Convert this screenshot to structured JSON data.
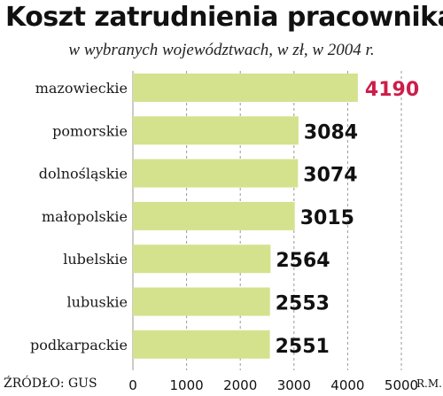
{
  "title": "Koszt zatrudnienia pracownika",
  "subtitle": "w wybranych województwach, w zł, w 2004 r.",
  "source": "ŹRÓDŁO: GUS",
  "credit": "R.M.",
  "colors": {
    "bar": "#d4e28e",
    "value_text": "#111111",
    "highlight_value_text": "#cc1e4a",
    "grid": "#999999"
  },
  "chart_data": {
    "type": "bar",
    "orientation": "horizontal",
    "categories": [
      "mazowieckie",
      "pomorskie",
      "dolnośląskie",
      "małopolskie",
      "lubelskie",
      "lubuskie",
      "podkarpackie"
    ],
    "values": [
      4190,
      3084,
      3074,
      3015,
      2564,
      2553,
      2551
    ],
    "value_labels": [
      "4190",
      "3084",
      "3074",
      "3015",
      "2564",
      "2553",
      "2551"
    ],
    "xlim": [
      0,
      5000
    ],
    "xticks": [
      0,
      1000,
      2000,
      3000,
      4000,
      5000
    ],
    "xtick_labels": [
      "0",
      "1000",
      "2000",
      "3000",
      "4000",
      "5000"
    ],
    "highlight_index": 0,
    "grid": true,
    "title": "Koszt zatrudnienia pracownika",
    "xlabel": "",
    "ylabel": ""
  }
}
